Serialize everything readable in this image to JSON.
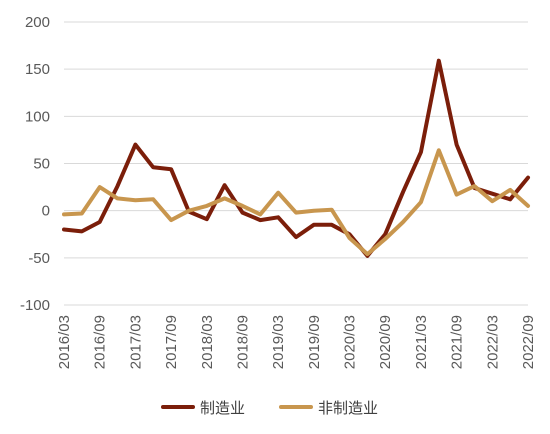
{
  "chart_data": {
    "type": "line",
    "title": "",
    "xlabel": "",
    "ylabel": "",
    "ylim": [
      -100,
      200
    ],
    "yticks": [
      200,
      150,
      100,
      50,
      0,
      -50,
      -100
    ],
    "grid": true,
    "legend_position": "bottom",
    "x": [
      "2016/03",
      "2016/06",
      "2016/09",
      "2016/12",
      "2017/03",
      "2017/06",
      "2017/09",
      "2017/12",
      "2018/03",
      "2018/06",
      "2018/09",
      "2018/12",
      "2019/03",
      "2019/06",
      "2019/09",
      "2019/12",
      "2020/03",
      "2020/06",
      "2020/09",
      "2020/12",
      "2021/03",
      "2021/06",
      "2021/09",
      "2021/12",
      "2022/03",
      "2022/06",
      "2022/09"
    ],
    "xtick_labels": [
      "2016/03",
      "2016/09",
      "2017/03",
      "2017/09",
      "2018/03",
      "2018/09",
      "2019/03",
      "2019/09",
      "2020/03",
      "2020/09",
      "2021/03",
      "2021/09",
      "2022/03",
      "2022/09"
    ],
    "series": [
      {
        "name": "制造业",
        "color": "#7B1E0A",
        "values": [
          -20,
          -22,
          -12,
          26,
          70,
          46,
          44,
          -1,
          -9,
          27,
          -2,
          -10,
          -7,
          -28,
          -15,
          -15,
          -25,
          -48,
          -25,
          20,
          62,
          159,
          70,
          24,
          18,
          12,
          35
        ]
      },
      {
        "name": "非制造业",
        "color": "#C8964E",
        "values": [
          -4,
          -3,
          25,
          13,
          11,
          12,
          -10,
          0,
          5,
          13,
          5,
          -4,
          19,
          -2,
          0,
          1,
          -29,
          -46,
          -30,
          -12,
          9,
          64,
          17,
          26,
          10,
          22,
          5
        ]
      }
    ]
  }
}
